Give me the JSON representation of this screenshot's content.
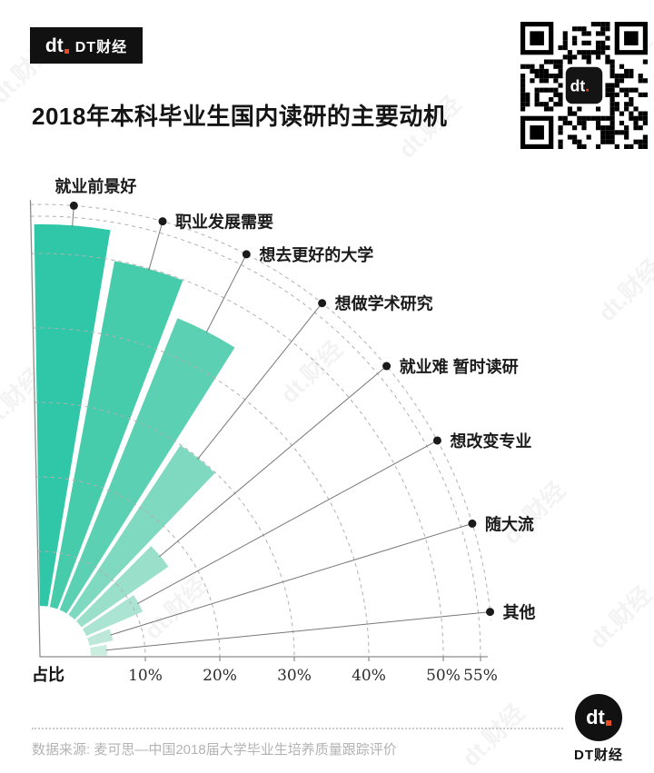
{
  "brand": {
    "mark": "dt",
    "name": "DT财经"
  },
  "title": "2018年本科毕业生国内读研的主要动机",
  "watermark": {
    "text": "dt.财经"
  },
  "chart_data": {
    "type": "bar",
    "subtype": "polar-fan",
    "title": "2018年本科毕业生国内读研的主要动机",
    "categories": [
      "就业前景好",
      "职业发展需要",
      "想去更好的大学",
      "想做学术研究",
      "就业难 暂时读研",
      "想改变专业",
      "随大流",
      "其他"
    ],
    "values": [
      54,
      50,
      45,
      30,
      17,
      11,
      6,
      5
    ],
    "unit": "%",
    "axis_label": "占比",
    "axis_ticks": [
      "10%",
      "20%",
      "30%",
      "40%",
      "50%",
      "55%"
    ],
    "tick_values": [
      10,
      20,
      30,
      40,
      50,
      55
    ],
    "axis_max": 55,
    "angle_span_deg": 90,
    "grid": "dashed concentric arcs",
    "legend": "none",
    "colors": [
      "#2fc7a7",
      "#46cbab",
      "#5bd0b3",
      "#7fd8c0",
      "#99dfca",
      "#abe4d2",
      "#bde8d9",
      "#cbedde"
    ],
    "label_dot_color": "#1a1a1a",
    "leader_line_color": "#787878",
    "axis_color": "#8c8c8c"
  },
  "footer": {
    "source": "数据来源: 麦可思—中国2018届大学毕业生培养质量跟踪评价"
  }
}
